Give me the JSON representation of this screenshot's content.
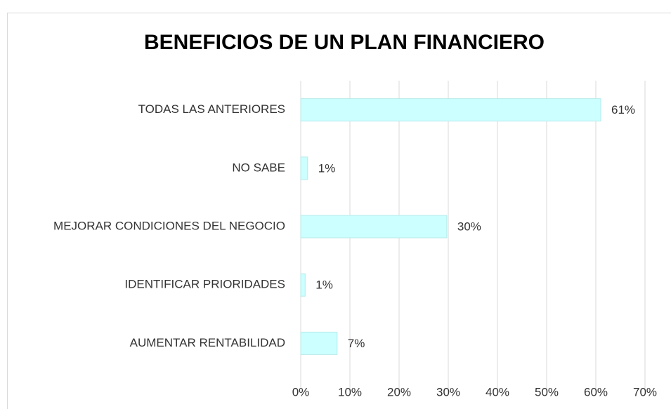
{
  "chart_data": {
    "type": "bar",
    "orientation": "horizontal",
    "title": "BENEFICIOS DE UN PLAN FINANCIERO",
    "categories": [
      "TODAS LAS ANTERIORES",
      "NO SABE",
      "MEJORAR CONDICIONES DEL NEGOCIO",
      "IDENTIFICAR PRIORIDADES",
      "AUMENTAR RENTABILIDAD"
    ],
    "values": [
      61,
      1.4,
      29.7,
      0.9,
      7.4
    ],
    "value_labels": [
      "61%",
      "1%",
      "30%",
      "1%",
      "7%"
    ],
    "color": "#ccffff",
    "xlim": [
      0,
      70
    ],
    "xticks": [
      {
        "value": 0,
        "label": "0%"
      },
      {
        "value": 10,
        "label": "10%"
      },
      {
        "value": 20,
        "label": "20%"
      },
      {
        "value": 30,
        "label": "30%"
      },
      {
        "value": 40,
        "label": "40%"
      },
      {
        "value": 50,
        "label": "50%"
      },
      {
        "value": 60,
        "label": "60%"
      },
      {
        "value": 70,
        "label": "70%"
      }
    ],
    "grid": true
  }
}
